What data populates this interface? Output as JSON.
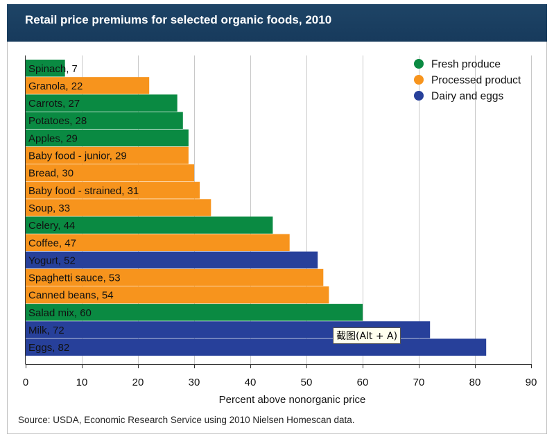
{
  "title": "Retail price premiums for selected organic foods, 2010",
  "source": "Source: USDA, Economic Research Service using 2010 Nielsen Homescan data.",
  "tooltip": "截图(Alt + A)",
  "colors": {
    "Fresh produce": "#0a8a42",
    "Processed product": "#f7941d",
    "Dairy and eggs": "#27409a"
  },
  "chart_data": {
    "type": "bar",
    "orientation": "horizontal",
    "title": "Retail price premiums for selected organic foods, 2010",
    "xlabel": "Percent above nonorganic price",
    "ylabel": "",
    "xlim": [
      0,
      90
    ],
    "xticks": [
      0,
      10,
      20,
      30,
      40,
      50,
      60,
      70,
      80,
      90
    ],
    "grid": true,
    "legend_position": "top-right",
    "legend": [
      "Fresh produce",
      "Processed product",
      "Dairy and eggs"
    ],
    "bars": [
      {
        "label": "Spinach, 7",
        "value": 7,
        "category": "Fresh produce"
      },
      {
        "label": "Granola, 22",
        "value": 22,
        "category": "Processed product"
      },
      {
        "label": "Carrots, 27",
        "value": 27,
        "category": "Fresh produce"
      },
      {
        "label": "Potatoes, 28",
        "value": 28,
        "category": "Fresh produce"
      },
      {
        "label": "Apples, 29",
        "value": 29,
        "category": "Fresh produce"
      },
      {
        "label": "Baby food - junior, 29",
        "value": 29,
        "category": "Processed product"
      },
      {
        "label": "Bread, 30",
        "value": 30,
        "category": "Processed product"
      },
      {
        "label": "Baby food - strained, 31",
        "value": 31,
        "category": "Processed product"
      },
      {
        "label": "Soup, 33",
        "value": 33,
        "category": "Processed product"
      },
      {
        "label": "Celery, 44",
        "value": 44,
        "category": "Fresh produce"
      },
      {
        "label": "Coffee, 47",
        "value": 47,
        "category": "Processed product"
      },
      {
        "label": "Yogurt, 52",
        "value": 52,
        "category": "Dairy and eggs"
      },
      {
        "label": "Spaghetti sauce, 53",
        "value": 53,
        "category": "Processed product"
      },
      {
        "label": "Canned beans, 54",
        "value": 54,
        "category": "Processed product"
      },
      {
        "label": "Salad mix, 60",
        "value": 60,
        "category": "Fresh produce"
      },
      {
        "label": "Milk, 72",
        "value": 72,
        "category": "Dairy and eggs"
      },
      {
        "label": "Eggs, 82",
        "value": 82,
        "category": "Dairy and eggs"
      }
    ]
  }
}
